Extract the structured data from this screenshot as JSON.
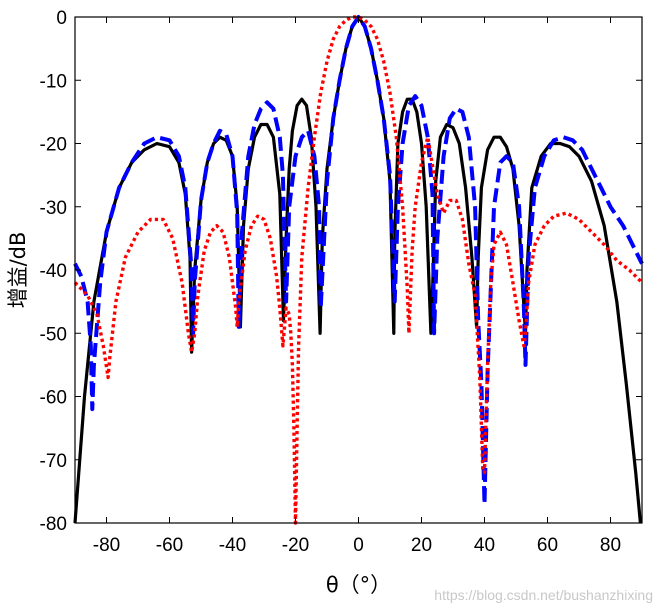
{
  "chart_data": {
    "type": "line",
    "title": "",
    "xlabel": "θ（°）",
    "ylabel": "增益/dB",
    "xlim": [
      -90,
      90
    ],
    "ylim": [
      -80,
      0
    ],
    "xticks": [
      -80,
      -60,
      -40,
      -20,
      0,
      20,
      40,
      60,
      80
    ],
    "yticks": [
      0,
      -10,
      -20,
      -30,
      -40,
      -50,
      -60,
      -70,
      -80
    ],
    "grid": false,
    "legend": "none",
    "series": [
      {
        "style": "solid",
        "color": "#000000",
        "x": [
          -90,
          -87,
          -84,
          -80,
          -76,
          -72,
          -68,
          -64,
          -60,
          -57,
          -55,
          -53.5,
          -53,
          -52,
          -50,
          -48,
          -46,
          -44,
          -42,
          -40,
          -38.5,
          -37.5,
          -36.5,
          -35,
          -33,
          -31,
          -29,
          -27,
          -25,
          -23.8,
          -23,
          -22,
          -21,
          -19.5,
          -18,
          -16.5,
          -15,
          -13.5,
          -12.2,
          -11.5,
          -10,
          -8,
          -6,
          -4,
          -2,
          0,
          2,
          4,
          6,
          8,
          10,
          11.2,
          11.5,
          12.5,
          14,
          15.5,
          17,
          18.5,
          20,
          21.5,
          23,
          23.6,
          24.5,
          26,
          28,
          30,
          32,
          34,
          36,
          37.5,
          38,
          39,
          41,
          43,
          45,
          47,
          49,
          51,
          53,
          53.5,
          55,
          58,
          61,
          64,
          67,
          70,
          74,
          78,
          82,
          85,
          88,
          89.5
        ],
        "y": [
          -80,
          -60,
          -45,
          -34,
          -27,
          -23,
          -21,
          -20,
          -20.5,
          -23,
          -28,
          -38,
          -53,
          -40,
          -29,
          -23,
          -20,
          -19,
          -19.5,
          -22,
          -30,
          -49,
          -33,
          -24,
          -19,
          -17,
          -17,
          -19,
          -28,
          -48,
          -35,
          -24,
          -18,
          -14,
          -13,
          -14,
          -19,
          -30,
          -50,
          -35,
          -24,
          -16,
          -10,
          -5,
          -1.5,
          0,
          -1.5,
          -5,
          -10,
          -16,
          -26,
          -50,
          -35,
          -20,
          -15,
          -13,
          -13,
          -15,
          -20,
          -30,
          -50,
          -42,
          -26,
          -19,
          -17,
          -17.5,
          -20,
          -27,
          -38,
          -49,
          -38,
          -27,
          -21,
          -19,
          -19,
          -20.5,
          -24,
          -33,
          -50,
          -40,
          -27,
          -22,
          -20,
          -20,
          -20.5,
          -22,
          -26,
          -33,
          -45,
          -58,
          -72,
          -80
        ]
      },
      {
        "style": "dashed",
        "color": "#0000ff",
        "x": [
          -90,
          -88,
          -86,
          -85,
          -84.5,
          -84,
          -82,
          -80,
          -76,
          -72,
          -68,
          -64,
          -60,
          -57,
          -55,
          -53,
          -52.5,
          -52,
          -50,
          -48,
          -46,
          -44,
          -42,
          -40,
          -38.5,
          -38,
          -37,
          -35,
          -33,
          -31,
          -29,
          -27,
          -25,
          -24,
          -23,
          -22,
          -20,
          -18,
          -16,
          -14,
          -12.5,
          -12,
          -10,
          -8,
          -6,
          -4,
          -2,
          0,
          2,
          4,
          6,
          8,
          10,
          11.5,
          12.5,
          14,
          16,
          18,
          20,
          22,
          23.5,
          24,
          25,
          27,
          29,
          31,
          33,
          35,
          37,
          38,
          39,
          40,
          41,
          43,
          45,
          47,
          49,
          51,
          52.5,
          53,
          54,
          56,
          59,
          62,
          65,
          68,
          71,
          74,
          77,
          80,
          84,
          88,
          90
        ],
        "y": [
          -39,
          -41,
          -45,
          -52,
          -62,
          -55,
          -42,
          -34,
          -27,
          -23,
          -20,
          -19,
          -19.5,
          -22,
          -27,
          -40,
          -50,
          -42,
          -29,
          -23,
          -20,
          -18,
          -18.5,
          -22,
          -31,
          -49,
          -34,
          -22,
          -17,
          -14.5,
          -13.5,
          -14.5,
          -19,
          -25,
          -45,
          -30,
          -22,
          -19,
          -18,
          -22,
          -30,
          -46,
          -26,
          -16,
          -10,
          -5,
          -1.5,
          0,
          -1.5,
          -5,
          -10,
          -16,
          -25,
          -45,
          -30,
          -20,
          -14,
          -12.5,
          -14,
          -19,
          -28,
          -50,
          -35,
          -22,
          -16,
          -14.5,
          -15,
          -19,
          -30,
          -48,
          -58,
          -77,
          -56,
          -30,
          -23,
          -22,
          -23,
          -30,
          -46,
          -55,
          -38,
          -27,
          -22,
          -19.5,
          -19,
          -19.5,
          -21,
          -24,
          -27,
          -30,
          -33,
          -37,
          -39
        ]
      },
      {
        "style": "dotted",
        "color": "#ff0000",
        "x": [
          -90,
          -86,
          -83,
          -81,
          -79.5,
          -79,
          -77,
          -74,
          -70,
          -66,
          -62,
          -59,
          -56,
          -54,
          -53,
          -52,
          -51,
          -49,
          -47,
          -45,
          -43,
          -41,
          -39,
          -38.5,
          -38,
          -36,
          -34,
          -32,
          -30,
          -28,
          -26,
          -25,
          -24,
          -23.5,
          -23,
          -22,
          -21.5,
          -21,
          -20.5,
          -20,
          -19.5,
          -19,
          -18,
          -16,
          -14,
          -12,
          -10,
          -8,
          -6,
          -4,
          -2,
          0,
          2,
          4,
          6,
          8,
          10,
          12,
          14,
          15.5,
          16,
          17,
          18,
          20,
          21.5,
          22,
          23,
          25,
          27,
          29,
          31,
          33,
          35,
          37,
          38.5,
          39.5,
          40,
          41,
          42,
          43,
          45,
          47,
          49,
          51,
          52.5,
          53,
          54,
          56,
          59,
          62,
          66,
          70,
          74,
          78,
          82,
          86,
          90
        ],
        "y": [
          -42,
          -44,
          -47,
          -52,
          -57,
          -54,
          -45,
          -38,
          -34,
          -32,
          -32,
          -35,
          -42,
          -50,
          -53,
          -50,
          -44,
          -37,
          -34,
          -33,
          -34,
          -38,
          -46,
          -49,
          -45,
          -37,
          -33,
          -31.5,
          -32,
          -35,
          -41,
          -46,
          -52,
          -49,
          -46,
          -47,
          -50,
          -55,
          -65,
          -80,
          -65,
          -52,
          -38,
          -27,
          -19,
          -12,
          -7,
          -3.5,
          -1.5,
          -0.5,
          0,
          0,
          -0.5,
          -1.5,
          -3.5,
          -7,
          -12,
          -19,
          -30,
          -43,
          -50,
          -37,
          -30,
          -23,
          -20,
          -19,
          -22,
          -28,
          -31,
          -29,
          -29,
          -32,
          -39,
          -44,
          -57,
          -72,
          -72,
          -55,
          -42,
          -36,
          -34,
          -36,
          -42,
          -48,
          -52,
          -50,
          -42,
          -36,
          -33,
          -31.5,
          -31,
          -32,
          -34,
          -36,
          -38.5,
          -40,
          -42
        ]
      }
    ]
  },
  "watermark": "https://blog.csdn.net/bushanzhixing"
}
